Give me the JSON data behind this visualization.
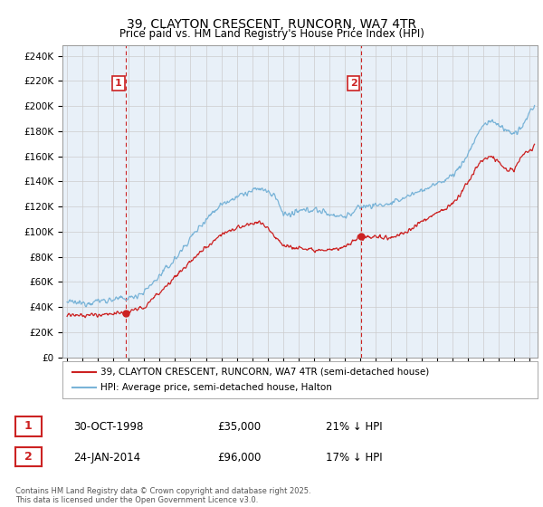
{
  "title": "39, CLAYTON CRESCENT, RUNCORN, WA7 4TR",
  "subtitle": "Price paid vs. HM Land Registry's House Price Index (HPI)",
  "ylabel_ticks": [
    "£0",
    "£20K",
    "£40K",
    "£60K",
    "£80K",
    "£100K",
    "£120K",
    "£140K",
    "£160K",
    "£180K",
    "£200K",
    "£220K",
    "£240K"
  ],
  "ytick_values": [
    0,
    20000,
    40000,
    60000,
    80000,
    100000,
    120000,
    140000,
    160000,
    180000,
    200000,
    220000,
    240000
  ],
  "ylim": [
    0,
    248000
  ],
  "xlim_start": 1994.7,
  "xlim_end": 2025.5,
  "hpi_color": "#7ab4d8",
  "price_color": "#cc2222",
  "vline_color": "#cc2222",
  "grid_color": "#cccccc",
  "background_color": "#ffffff",
  "chart_bg": "#e8f0f8",
  "sale1_year": 1998.83,
  "sale1_price": 35000,
  "sale1_label": "1",
  "sale2_year": 2014.07,
  "sale2_price": 96000,
  "sale2_label": "2",
  "legend_line1": "39, CLAYTON CRESCENT, RUNCORN, WA7 4TR (semi-detached house)",
  "legend_line2": "HPI: Average price, semi-detached house, Halton",
  "table_row1": [
    "1",
    "30-OCT-1998",
    "£35,000",
    "21% ↓ HPI"
  ],
  "table_row2": [
    "2",
    "24-JAN-2014",
    "£96,000",
    "17% ↓ HPI"
  ],
  "footer": "Contains HM Land Registry data © Crown copyright and database right 2025.\nThis data is licensed under the Open Government Licence v3.0."
}
